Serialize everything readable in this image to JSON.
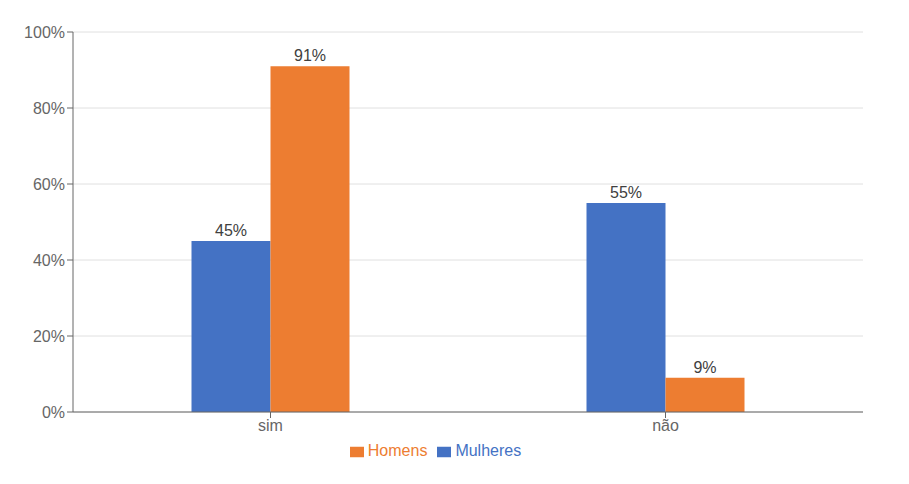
{
  "chart_data": {
    "type": "bar",
    "categories": [
      "sim",
      "não"
    ],
    "series": [
      {
        "name": "Mulheres",
        "color": "#4472C4",
        "values": [
          45,
          55
        ],
        "value_labels": [
          "45%",
          "55%"
        ]
      },
      {
        "name": "Homens",
        "color": "#ED7D31",
        "values": [
          91,
          9
        ],
        "value_labels": [
          "91%",
          "9%"
        ]
      }
    ],
    "ylim": [
      0,
      100
    ],
    "yticks": [
      {
        "value": 0,
        "label": "0%"
      },
      {
        "value": 20,
        "label": "20%"
      },
      {
        "value": 40,
        "label": "40%"
      },
      {
        "value": 60,
        "label": "60%"
      },
      {
        "value": 80,
        "label": "80%"
      },
      {
        "value": 100,
        "label": "100%"
      }
    ],
    "grid": true,
    "legend": "bottom",
    "data_labels": true
  }
}
